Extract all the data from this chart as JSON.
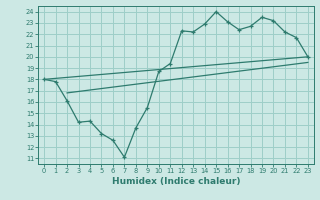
{
  "background_color": "#cce8e4",
  "grid_color": "#9ecec8",
  "line_color": "#2e7b6e",
  "xlabel": "Humidex (Indice chaleur)",
  "xlim": [
    -0.5,
    23.5
  ],
  "ylim": [
    10.5,
    24.5
  ],
  "yticks": [
    11,
    12,
    13,
    14,
    15,
    16,
    17,
    18,
    19,
    20,
    21,
    22,
    23,
    24
  ],
  "xticks": [
    0,
    1,
    2,
    3,
    4,
    5,
    6,
    7,
    8,
    9,
    10,
    11,
    12,
    13,
    14,
    15,
    16,
    17,
    18,
    19,
    20,
    21,
    22,
    23
  ],
  "line1_x": [
    0,
    1,
    2,
    3,
    4,
    5,
    6,
    7,
    8,
    9,
    10,
    11,
    12,
    13,
    14,
    15,
    16,
    17,
    18,
    19,
    20,
    21,
    22,
    23
  ],
  "line1_y": [
    18.0,
    17.8,
    16.1,
    14.2,
    14.3,
    13.2,
    12.6,
    11.1,
    13.7,
    15.5,
    18.7,
    19.4,
    22.3,
    22.2,
    22.9,
    24.0,
    23.1,
    22.4,
    22.7,
    23.5,
    23.2,
    22.2,
    21.7,
    20.0
  ],
  "line2_x": [
    0,
    23
  ],
  "line2_y": [
    18.0,
    20.0
  ],
  "line3_x": [
    2,
    23
  ],
  "line3_y": [
    16.8,
    19.5
  ]
}
